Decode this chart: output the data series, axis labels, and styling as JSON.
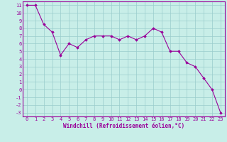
{
  "x": [
    0,
    1,
    2,
    3,
    4,
    5,
    6,
    7,
    8,
    9,
    10,
    11,
    12,
    13,
    14,
    15,
    16,
    17,
    18,
    19,
    20,
    21,
    22,
    23
  ],
  "y": [
    11,
    11,
    8.5,
    7.5,
    4.5,
    6,
    5.5,
    6.5,
    7,
    7,
    7,
    6.5,
    7,
    6.5,
    7,
    8,
    7.5,
    5,
    5,
    3.5,
    3,
    1.5,
    0,
    -3
  ],
  "line_color": "#990099",
  "marker": "D",
  "marker_size": 1.8,
  "bg_color": "#c8eee8",
  "grid_color": "#99cccc",
  "xlabel": "Windchill (Refroidissement éolien,°C)",
  "xlim": [
    -0.5,
    23.5
  ],
  "ylim": [
    -3.5,
    11.5
  ],
  "yticks": [
    11,
    10,
    9,
    8,
    7,
    6,
    5,
    4,
    3,
    2,
    1,
    0,
    -1,
    -2,
    -3
  ],
  "xticks": [
    0,
    1,
    2,
    3,
    4,
    5,
    6,
    7,
    8,
    9,
    10,
    11,
    12,
    13,
    14,
    15,
    16,
    17,
    18,
    19,
    20,
    21,
    22,
    23
  ],
  "line_width": 0.8,
  "tick_fontsize": 5.0,
  "xlabel_fontsize": 5.5
}
